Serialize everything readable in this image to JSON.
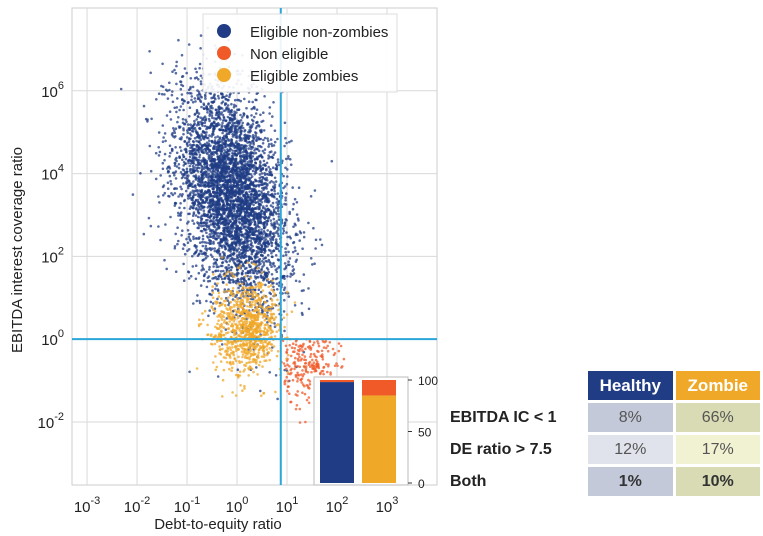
{
  "chart_data": {
    "type": "scatter",
    "xlabel": "Debt-to-equity ratio",
    "ylabel": "EBITDA interest coverage ratio",
    "x_scale": "log",
    "y_scale": "log",
    "xlim": [
      0.0005,
      10000
    ],
    "ylim": [
      0.0003,
      100000000
    ],
    "x_ticks": [
      {
        "base": "10",
        "exp": "-3",
        "v": 0.001
      },
      {
        "base": "10",
        "exp": "-2",
        "v": 0.01
      },
      {
        "base": "10",
        "exp": "-1",
        "v": 0.1
      },
      {
        "base": "10",
        "exp": "0",
        "v": 1
      },
      {
        "base": "10",
        "exp": "1",
        "v": 10
      },
      {
        "base": "10",
        "exp": "2",
        "v": 100
      },
      {
        "base": "10",
        "exp": "3",
        "v": 1000
      }
    ],
    "y_ticks": [
      {
        "base": "10",
        "exp": "-2",
        "v": 0.01
      },
      {
        "base": "10",
        "exp": "0",
        "v": 1
      },
      {
        "base": "10",
        "exp": "2",
        "v": 100
      },
      {
        "base": "10",
        "exp": "4",
        "v": 10000
      },
      {
        "base": "10",
        "exp": "6",
        "v": 1000000
      }
    ],
    "threshold_lines": {
      "x": 7.5,
      "y": 1
    },
    "grid": true,
    "legend_position": "top-right",
    "series": [
      {
        "name": "Eligible non-zombies",
        "color": "#1f3c84",
        "center": [
          0.8,
          3000
        ],
        "spread": [
          0.55,
          1.2
        ],
        "n": 4500
      },
      {
        "name": "Non eligible",
        "color": "#f05a28",
        "center": [
          25,
          0.25
        ],
        "spread": [
          0.3,
          0.5
        ],
        "n": 250
      },
      {
        "name": "Eligible zombies",
        "color": "#f0a829",
        "center": [
          1.5,
          2
        ],
        "spread": [
          0.35,
          0.55
        ],
        "n": 900
      }
    ]
  },
  "inset_chart": {
    "type": "stacked-bar",
    "y_ticks": [
      "100",
      "50",
      "0"
    ],
    "ylim": [
      0,
      100
    ],
    "bars": [
      {
        "name": "Healthy",
        "segments": [
          {
            "value": 98,
            "color": "#1f3c84"
          },
          {
            "value": 2,
            "color": "#f05a28"
          }
        ]
      },
      {
        "name": "Zombie",
        "segments": [
          {
            "value": 85,
            "color": "#f0a829"
          },
          {
            "value": 15,
            "color": "#f05a28"
          }
        ]
      }
    ]
  },
  "table": {
    "headers": [
      "Healthy",
      "Zombie"
    ],
    "rows": [
      {
        "label": "EBITDA IC < 1",
        "healthy": "8%",
        "zombie": "66%"
      },
      {
        "label": "DE ratio > 7.5",
        "healthy": "12%",
        "zombie": "17%"
      },
      {
        "label": "Both",
        "healthy": "1%",
        "zombie": "10%"
      }
    ]
  }
}
